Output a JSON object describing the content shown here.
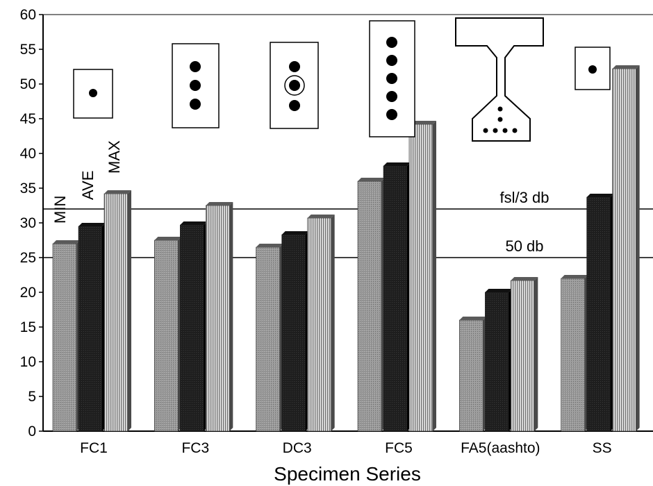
{
  "chart_data": {
    "type": "bar",
    "xlabel": "Specimen Series",
    "ylabel": "",
    "ylim": [
      0,
      60
    ],
    "yticks": [
      0,
      5,
      10,
      15,
      20,
      25,
      30,
      35,
      40,
      45,
      50,
      55,
      60
    ],
    "categories": [
      "FC1",
      "FC3",
      "DC3",
      "FC5",
      "FA5(aashto)",
      "SS"
    ],
    "series": [
      {
        "name": "MIN",
        "values": [
          27,
          27.5,
          26.5,
          36,
          16,
          22
        ],
        "color": "#8c8c8c"
      },
      {
        "name": "AVE",
        "values": [
          29.5,
          29.7,
          28.3,
          38.2,
          20,
          33.7
        ],
        "color": "#1c1c1c"
      },
      {
        "name": "MAX",
        "values": [
          34.2,
          32.5,
          30.7,
          44.2,
          21.7,
          52.2
        ],
        "color": "#bdbdbd"
      }
    ],
    "reference_lines": [
      {
        "label": "fsl/3 db",
        "value": 32
      },
      {
        "label": "50 db",
        "value": 25
      }
    ],
    "grid": false,
    "legend": "rotated labels above first bar group"
  }
}
